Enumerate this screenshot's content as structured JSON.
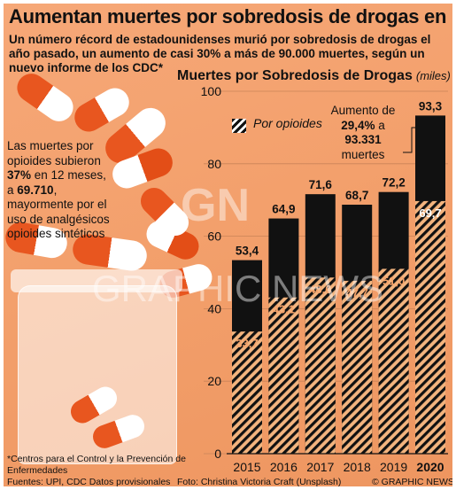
{
  "title": "Aumentan muertes por sobredosis de drogas en EUA",
  "subtitle": "Un número récord de estadounidenses murió por sobredosis de drogas el año pasado, un aumento de casi 30% a más de 90.000 muertes, según un nuevo informe de los CDC*",
  "side_note": {
    "p1": "Las muertes por opioides subieron ",
    "b1": "37%",
    "p2": " en 12 meses, a ",
    "b2": "69.710",
    "p3": ", mayormente por el uso de analgésicos opioides sintéticos"
  },
  "increase_note": {
    "line1": "Aumento de",
    "b1": "29,4%",
    "mid": " a",
    "b2": "93.331",
    "line4": "muertes"
  },
  "footnote": "*Centros para el Control y la Prevención de Enfermedades",
  "sources": "Fuentes: UPI, CDC   Datos provisionales",
  "credit": "Foto: Christina Victoria Craft (Unsplash)",
  "agency": "© GRAPHIC NEWS",
  "watermark": {
    "logo": "GN",
    "text": "GRAPHIC NEWS"
  },
  "colors": {
    "total_bar": "#111111",
    "opioid_hatch": "#f3b47e",
    "background": "#f3a06c",
    "total_label_light": "#ffffff",
    "opioid_label": "#f5a36a"
  },
  "chart_data": {
    "type": "bar",
    "title": "Muertes por Sobredosis de Drogas",
    "unit": "(miles)",
    "categories": [
      "2015",
      "2016",
      "2017",
      "2018",
      "2019",
      "2020"
    ],
    "series": [
      {
        "name": "Total",
        "values": [
          53.4,
          64.9,
          71.6,
          68.7,
          72.2,
          93.3
        ],
        "labels": [
          "53,4",
          "64,9",
          "71,6",
          "68,7",
          "72,2",
          "93,3"
        ]
      },
      {
        "name": "Por opioides",
        "values": [
          33.7,
          43.1,
          48.6,
          47.7,
          51.0,
          69.7
        ],
        "labels": [
          "33,7",
          "43,1",
          "48,6",
          "47,7",
          "51,0",
          "69,7"
        ]
      }
    ],
    "ylim": [
      0,
      100
    ],
    "yticks": [
      "0",
      "20",
      "40",
      "60",
      "80",
      "100"
    ],
    "legend": "Por opioides",
    "highlight_category": "2020",
    "grid": true
  }
}
